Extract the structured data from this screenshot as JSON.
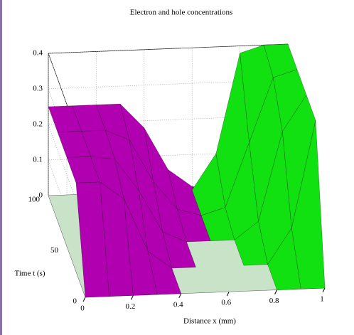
{
  "chart_data": {
    "type": "surface",
    "title": "Electron and hole concentrations",
    "xlabel": "Distance x (mm)",
    "ylabel": "Time t (s)",
    "x": [
      0,
      0.1,
      0.2,
      0.3,
      0.4,
      0.5,
      0.6,
      0.7,
      0.8,
      0.9,
      1
    ],
    "t": [
      0,
      25,
      50,
      75,
      100
    ],
    "xlim": [
      0,
      1
    ],
    "xticks": [
      0,
      0.2,
      0.4,
      0.6,
      0.8,
      1
    ],
    "tlim": [
      0,
      100
    ],
    "tticks": [
      0,
      50,
      100
    ],
    "zlim": [
      0,
      0.4
    ],
    "zticks": [
      0,
      0.1,
      0.2,
      0.3,
      0.4
    ],
    "grid": true,
    "floor_color": "#c9e3c9",
    "series": [
      {
        "color": "#b000b0",
        "values": [
          [
            0,
            0,
            0,
            0,
            0,
            0,
            0,
            0,
            0,
            0,
            0
          ],
          [
            0.25,
            0.25,
            0.2,
            0.05,
            0,
            0,
            0,
            0,
            0,
            0,
            0
          ],
          [
            0.25,
            0.25,
            0.24,
            0.15,
            0.03,
            0,
            0,
            0,
            0,
            0,
            0
          ],
          [
            0.25,
            0.25,
            0.25,
            0.22,
            0.1,
            0.02,
            0,
            0,
            0,
            0,
            0
          ],
          [
            0.25,
            0.25,
            0.25,
            0.25,
            0.18,
            0.06,
            0.01,
            0,
            0,
            0,
            0
          ]
        ]
      },
      {
        "color": "#11e011",
        "values": [
          [
            0,
            0,
            0,
            0,
            0,
            0,
            0,
            0,
            0,
            0,
            0
          ],
          [
            0,
            0,
            0,
            0,
            0,
            0,
            0,
            0,
            0,
            0.1,
            0.4
          ],
          [
            0,
            0,
            0,
            0,
            0,
            0,
            0,
            0,
            0.05,
            0.3,
            0.4
          ],
          [
            0,
            0,
            0,
            0,
            0,
            0,
            0,
            0.02,
            0.2,
            0.38,
            0.4
          ],
          [
            0,
            0,
            0,
            0,
            0,
            0,
            0,
            0.1,
            0.38,
            0.4,
            0.4
          ]
        ]
      }
    ]
  }
}
